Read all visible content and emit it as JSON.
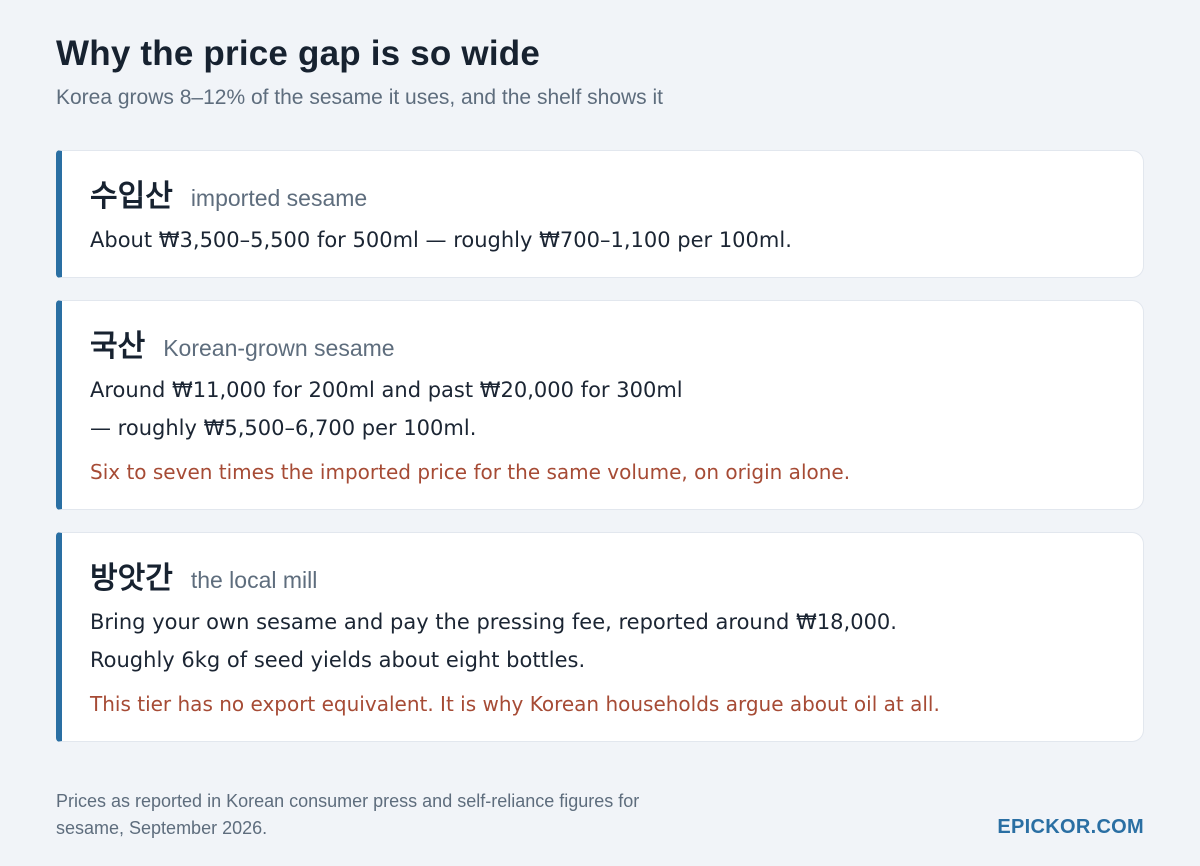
{
  "header": {
    "title": "Why the price gap is so wide",
    "subtitle": "Korea grows 8–12% of the sesame it uses, and the shelf shows it"
  },
  "cards": [
    {
      "korean": "수입산",
      "english": "imported sesame",
      "lines": [
        "About ₩3,500–5,500 for 500ml — roughly ₩700–1,100 per 100ml."
      ],
      "note": ""
    },
    {
      "korean": "국산",
      "english": "Korean-grown sesame",
      "lines": [
        "Around ₩11,000 for 200ml and past ₩20,000 for 300ml",
        "— roughly ₩5,500–6,700 per 100ml."
      ],
      "note": "Six to seven times the imported price for the same volume, on origin alone."
    },
    {
      "korean": "방앗간",
      "english": "the local mill",
      "lines": [
        "Bring your own sesame and pay the pressing fee, reported around ₩18,000.",
        "Roughly 6kg of seed yields about eight bottles."
      ],
      "note": "This tier has no export equivalent. It is why Korean households argue about oil at all."
    }
  ],
  "footer": {
    "source_line_1": "Prices as reported in Korean consumer press and self-reliance figures for",
    "source_line_2": "sesame, September 2026.",
    "brand": "EPICKOR.COM"
  },
  "colors": {
    "accent": "#2a6fa3",
    "note": "#a64b35",
    "background": "#f1f4f8"
  }
}
